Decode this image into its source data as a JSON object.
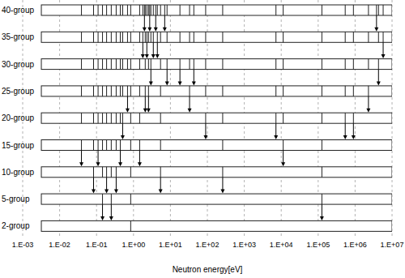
{
  "chart_data": {
    "type": "groups",
    "x_label": "Neutron energy[eV]",
    "log": "x",
    "grid": true,
    "tick_labels": "x",
    "xlim": [
      0.001,
      10000000
    ],
    "xticks": [
      {
        "value": 0.001,
        "label": "1.E-03"
      },
      {
        "value": 0.01,
        "label": "1.E-02"
      },
      {
        "value": 0.1,
        "label": "1.E-01"
      },
      {
        "value": 1,
        "label": "1.E+00"
      },
      {
        "value": 10,
        "label": "1.E+01"
      },
      {
        "value": 100,
        "label": "1.E+02"
      },
      {
        "value": 1000,
        "label": "1.E+03"
      },
      {
        "value": 10000,
        "label": "1.E+04"
      },
      {
        "value": 100000,
        "label": "1.E+05"
      },
      {
        "value": 1000000,
        "label": "1.E+06"
      },
      {
        "value": 10000000,
        "label": "1.E+07"
      }
    ],
    "series": [
      {
        "name": "40-group",
        "values": [
          0.0032,
          0.039,
          0.083,
          0.11,
          0.145,
          0.187,
          0.25,
          0.34,
          0.44,
          0.51,
          0.69,
          0.84,
          1.47,
          1.79,
          1.98,
          2.08,
          2.3,
          2.55,
          2.75,
          2.96,
          3.44,
          4.0,
          4.43,
          5.4,
          7.0,
          8.1,
          18.1,
          33,
          43,
          90,
          260,
          7200,
          11300,
          126000,
          540000,
          900000,
          2300000,
          3800000,
          4300000,
          5750000,
          10000000
        ],
        "arrows": [
          1.98,
          2.75,
          4.0,
          7.0,
          3800000
        ]
      },
      {
        "name": "35-group",
        "values": [
          0.0032,
          0.039,
          0.083,
          0.11,
          0.145,
          0.187,
          0.25,
          0.34,
          0.44,
          0.51,
          0.69,
          0.84,
          1.47,
          1.79,
          2.08,
          2.3,
          2.55,
          2.96,
          3.44,
          4.43,
          5.4,
          8.1,
          18.1,
          33,
          43,
          90,
          260,
          7200,
          11300,
          126000,
          540000,
          900000,
          2300000,
          4300000,
          5750000,
          10000000
        ],
        "arrows": [
          1.79,
          2.3,
          3.44,
          4.43,
          5750000
        ]
      },
      {
        "name": "30-group",
        "values": [
          0.0032,
          0.039,
          0.083,
          0.11,
          0.145,
          0.187,
          0.25,
          0.34,
          0.44,
          0.51,
          0.69,
          0.84,
          1.47,
          2.08,
          2.55,
          2.96,
          5.4,
          8.1,
          18.1,
          33,
          43,
          90,
          260,
          7200,
          11300,
          126000,
          540000,
          900000,
          2300000,
          4300000,
          10000000
        ],
        "arrows": [
          2.96,
          8.1,
          18.1,
          43,
          4300000
        ]
      },
      {
        "name": "25-group",
        "values": [
          0.0032,
          0.039,
          0.083,
          0.11,
          0.145,
          0.187,
          0.25,
          0.34,
          0.44,
          0.51,
          0.69,
          0.84,
          1.47,
          2.08,
          2.55,
          5.4,
          33,
          90,
          260,
          7200,
          11300,
          126000,
          540000,
          900000,
          2300000,
          10000000
        ],
        "arrows": [
          0.69,
          2.08,
          2.55,
          33,
          2300000
        ]
      },
      {
        "name": "20-group",
        "values": [
          0.0032,
          0.039,
          0.083,
          0.11,
          0.145,
          0.187,
          0.25,
          0.34,
          0.44,
          0.51,
          0.84,
          1.47,
          5.4,
          90,
          260,
          7200,
          11300,
          126000,
          540000,
          900000,
          10000000
        ],
        "arrows": [
          0.51,
          90,
          7200,
          540000,
          900000
        ]
      },
      {
        "name": "15-group",
        "values": [
          0.0032,
          0.039,
          0.083,
          0.11,
          0.145,
          0.187,
          0.25,
          0.34,
          0.44,
          0.84,
          1.47,
          5.4,
          260,
          11300,
          126000,
          10000000
        ],
        "arrows": [
          0.039,
          0.11,
          0.44,
          1.47,
          11300
        ]
      },
      {
        "name": "10-group",
        "values": [
          0.0032,
          0.083,
          0.145,
          0.187,
          0.25,
          0.34,
          0.84,
          5.4,
          260,
          126000,
          10000000
        ],
        "arrows": [
          0.083,
          0.187,
          0.34,
          5.4,
          260
        ]
      },
      {
        "name": "5-group",
        "values": [
          0.0032,
          0.145,
          0.25,
          0.84,
          126000,
          10000000
        ],
        "arrows": [
          0.145,
          0.25,
          126000
        ]
      },
      {
        "name": "2-group",
        "values": [
          0.0032,
          0.84,
          10000000
        ]
      }
    ]
  }
}
